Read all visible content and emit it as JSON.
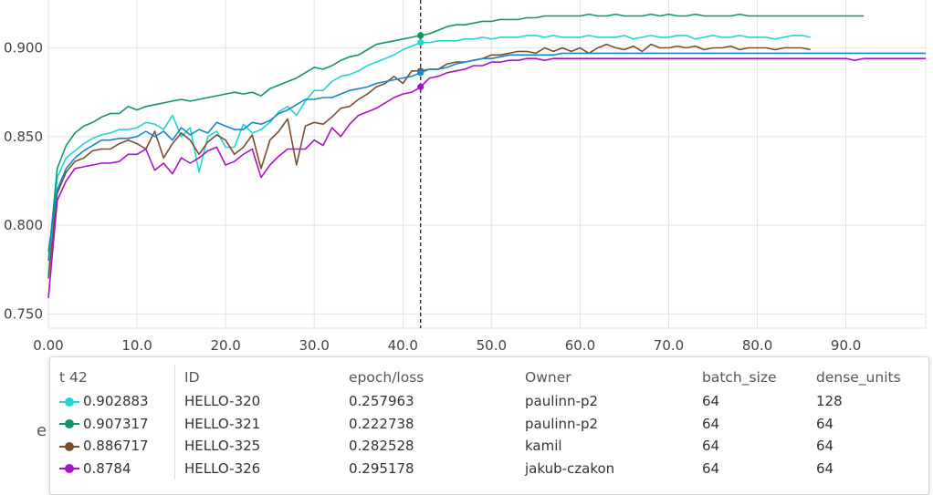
{
  "chart_data": {
    "type": "line",
    "xlim": [
      0,
      99
    ],
    "ylim": [
      0.742,
      0.927
    ],
    "x_ticks": [
      0,
      10,
      20,
      30,
      40,
      50,
      60,
      70,
      80,
      90
    ],
    "x_tick_labels": [
      "0.00",
      "10.0",
      "20.0",
      "30.0",
      "40.0",
      "50.0",
      "60.0",
      "70.0",
      "80.0",
      "90.0"
    ],
    "y_ticks": [
      0.75,
      0.8,
      0.85,
      0.9
    ],
    "y_tick_labels": [
      "0.750",
      "0.800",
      "0.850",
      "0.900"
    ],
    "grid": true,
    "cursor_x": 42,
    "series": [
      {
        "name": "HELLO-320",
        "color": "#20d5d2",
        "x": [
          0,
          1,
          2,
          3,
          4,
          5,
          6,
          7,
          8,
          9,
          10,
          11,
          12,
          13,
          14,
          15,
          16,
          17,
          18,
          19,
          20,
          21,
          22,
          23,
          24,
          25,
          26,
          27,
          28,
          29,
          30,
          31,
          32,
          33,
          34,
          35,
          36,
          37,
          38,
          39,
          40,
          41,
          42,
          43,
          44,
          45,
          46,
          47,
          48,
          49,
          50,
          51,
          52,
          53,
          54,
          55,
          56,
          57,
          58,
          59,
          60,
          61,
          62,
          63,
          64,
          65,
          66,
          67,
          68,
          69,
          70,
          71,
          72,
          73,
          74,
          75,
          76,
          77,
          78,
          79,
          80,
          81,
          82,
          83,
          84,
          85,
          86
        ],
        "values": [
          0.772,
          0.827,
          0.838,
          0.842,
          0.846,
          0.849,
          0.851,
          0.852,
          0.854,
          0.854,
          0.855,
          0.858,
          0.857,
          0.854,
          0.862,
          0.85,
          0.855,
          0.83,
          0.85,
          0.853,
          0.844,
          0.844,
          0.857,
          0.852,
          0.854,
          0.858,
          0.864,
          0.867,
          0.862,
          0.87,
          0.876,
          0.876,
          0.881,
          0.884,
          0.885,
          0.887,
          0.89,
          0.892,
          0.894,
          0.896,
          0.899,
          0.901,
          0.903,
          0.903,
          0.904,
          0.904,
          0.904,
          0.905,
          0.905,
          0.906,
          0.905,
          0.906,
          0.906,
          0.906,
          0.907,
          0.907,
          0.906,
          0.907,
          0.906,
          0.906,
          0.906,
          0.907,
          0.906,
          0.906,
          0.906,
          0.907,
          0.905,
          0.906,
          0.907,
          0.906,
          0.906,
          0.907,
          0.907,
          0.905,
          0.906,
          0.907,
          0.906,
          0.906,
          0.907,
          0.906,
          0.906,
          0.906,
          0.905,
          0.906,
          0.907,
          0.907,
          0.906
        ]
      },
      {
        "name": "HELLO-321",
        "color": "#11946a",
        "x": [
          0,
          1,
          2,
          3,
          4,
          5,
          6,
          7,
          8,
          9,
          10,
          11,
          12,
          13,
          14,
          15,
          16,
          17,
          18,
          19,
          20,
          21,
          22,
          23,
          24,
          25,
          26,
          27,
          28,
          29,
          30,
          31,
          32,
          33,
          34,
          35,
          36,
          37,
          38,
          39,
          40,
          41,
          42,
          43,
          44,
          45,
          46,
          47,
          48,
          49,
          50,
          51,
          52,
          53,
          54,
          55,
          56,
          57,
          58,
          59,
          60,
          61,
          62,
          63,
          64,
          65,
          66,
          67,
          68,
          69,
          70,
          71,
          72,
          73,
          74,
          75,
          76,
          77,
          78,
          79,
          80,
          81,
          82,
          83,
          84,
          85,
          86,
          87,
          88,
          89,
          90,
          91,
          92
        ],
        "values": [
          0.78,
          0.832,
          0.845,
          0.852,
          0.856,
          0.858,
          0.861,
          0.863,
          0.863,
          0.867,
          0.865,
          0.867,
          0.868,
          0.869,
          0.87,
          0.871,
          0.87,
          0.871,
          0.872,
          0.873,
          0.874,
          0.875,
          0.874,
          0.875,
          0.873,
          0.877,
          0.879,
          0.881,
          0.883,
          0.886,
          0.889,
          0.888,
          0.89,
          0.893,
          0.895,
          0.896,
          0.899,
          0.902,
          0.903,
          0.904,
          0.905,
          0.906,
          0.907,
          0.908,
          0.91,
          0.912,
          0.913,
          0.913,
          0.914,
          0.915,
          0.915,
          0.916,
          0.916,
          0.916,
          0.917,
          0.917,
          0.918,
          0.918,
          0.918,
          0.918,
          0.918,
          0.919,
          0.918,
          0.918,
          0.919,
          0.918,
          0.918,
          0.918,
          0.919,
          0.918,
          0.919,
          0.918,
          0.918,
          0.919,
          0.918,
          0.918,
          0.918,
          0.918,
          0.919,
          0.918,
          0.918,
          0.918,
          0.918,
          0.918,
          0.918,
          0.918,
          0.918,
          0.918,
          0.918,
          0.918,
          0.918,
          0.918,
          0.918
        ]
      },
      {
        "name": "HELLO-325",
        "color": "#7b4e30",
        "x": [
          0,
          1,
          2,
          3,
          4,
          5,
          6,
          7,
          8,
          9,
          10,
          11,
          12,
          13,
          14,
          15,
          16,
          17,
          18,
          19,
          20,
          21,
          22,
          23,
          24,
          25,
          26,
          27,
          28,
          29,
          30,
          31,
          32,
          33,
          34,
          35,
          36,
          37,
          38,
          39,
          40,
          41,
          42,
          43,
          44,
          45,
          46,
          47,
          48,
          49,
          50,
          51,
          52,
          53,
          54,
          55,
          56,
          57,
          58,
          59,
          60,
          61,
          62,
          63,
          64,
          65,
          66,
          67,
          68,
          69,
          70,
          71,
          72,
          73,
          74,
          75,
          76,
          77,
          78,
          79,
          80,
          81,
          82,
          83,
          84,
          85,
          86
        ],
        "values": [
          0.77,
          0.818,
          0.83,
          0.836,
          0.838,
          0.842,
          0.843,
          0.843,
          0.846,
          0.848,
          0.846,
          0.843,
          0.853,
          0.838,
          0.846,
          0.852,
          0.848,
          0.84,
          0.847,
          0.851,
          0.848,
          0.84,
          0.844,
          0.851,
          0.832,
          0.848,
          0.853,
          0.86,
          0.834,
          0.856,
          0.858,
          0.857,
          0.861,
          0.866,
          0.867,
          0.871,
          0.874,
          0.878,
          0.88,
          0.884,
          0.88,
          0.887,
          0.887,
          0.888,
          0.888,
          0.891,
          0.892,
          0.892,
          0.893,
          0.894,
          0.896,
          0.896,
          0.897,
          0.898,
          0.898,
          0.897,
          0.9,
          0.898,
          0.9,
          0.898,
          0.9,
          0.897,
          0.9,
          0.902,
          0.9,
          0.899,
          0.901,
          0.898,
          0.902,
          0.9,
          0.9,
          0.901,
          0.9,
          0.901,
          0.899,
          0.9,
          0.9,
          0.901,
          0.899,
          0.9,
          0.9,
          0.9,
          0.899,
          0.9,
          0.9,
          0.9,
          0.899
        ]
      },
      {
        "name": "HELLO-326",
        "color": "#a614c6",
        "x": [
          0,
          1,
          2,
          3,
          4,
          5,
          6,
          7,
          8,
          9,
          10,
          11,
          12,
          13,
          14,
          15,
          16,
          17,
          18,
          19,
          20,
          21,
          22,
          23,
          24,
          25,
          26,
          27,
          28,
          29,
          30,
          31,
          32,
          33,
          34,
          35,
          36,
          37,
          38,
          39,
          40,
          41,
          42,
          43,
          44,
          45,
          46,
          47,
          48,
          49,
          50,
          51,
          52,
          53,
          54,
          55,
          56,
          57,
          58,
          59,
          60,
          61,
          62,
          63,
          64,
          65,
          66,
          67,
          68,
          69,
          70,
          71,
          72,
          73,
          74,
          75,
          76,
          77,
          78,
          79,
          80,
          81,
          82,
          83,
          84,
          85,
          86,
          87,
          88,
          89,
          90,
          91,
          92,
          93,
          94,
          95,
          96,
          97,
          98,
          99
        ],
        "values": [
          0.759,
          0.814,
          0.825,
          0.832,
          0.833,
          0.834,
          0.835,
          0.835,
          0.836,
          0.84,
          0.84,
          0.843,
          0.831,
          0.835,
          0.829,
          0.838,
          0.835,
          0.838,
          0.842,
          0.844,
          0.834,
          0.836,
          0.84,
          0.843,
          0.827,
          0.834,
          0.839,
          0.843,
          0.843,
          0.843,
          0.848,
          0.845,
          0.855,
          0.85,
          0.857,
          0.862,
          0.864,
          0.866,
          0.869,
          0.872,
          0.874,
          0.875,
          0.878,
          0.883,
          0.884,
          0.886,
          0.887,
          0.888,
          0.89,
          0.89,
          0.892,
          0.892,
          0.893,
          0.893,
          0.894,
          0.894,
          0.893,
          0.894,
          0.894,
          0.894,
          0.894,
          0.894,
          0.894,
          0.894,
          0.894,
          0.894,
          0.894,
          0.894,
          0.894,
          0.894,
          0.894,
          0.894,
          0.894,
          0.894,
          0.894,
          0.894,
          0.894,
          0.894,
          0.894,
          0.894,
          0.894,
          0.894,
          0.894,
          0.894,
          0.894,
          0.894,
          0.894,
          0.894,
          0.894,
          0.894,
          0.894,
          0.893,
          0.894,
          0.894,
          0.894,
          0.894,
          0.894,
          0.894,
          0.894,
          0.894
        ]
      },
      {
        "name": "",
        "color": "#1787c8",
        "x": [
          0,
          1,
          2,
          3,
          4,
          5,
          6,
          7,
          8,
          9,
          10,
          11,
          12,
          13,
          14,
          15,
          16,
          17,
          18,
          19,
          20,
          21,
          22,
          23,
          24,
          25,
          26,
          27,
          28,
          29,
          30,
          31,
          32,
          33,
          34,
          35,
          36,
          37,
          38,
          39,
          40,
          41,
          42,
          43,
          44,
          45,
          46,
          47,
          48,
          49,
          50,
          51,
          52,
          53,
          54,
          55,
          56,
          57,
          58,
          59,
          60,
          61,
          62,
          63,
          64,
          65,
          66,
          67,
          68,
          69,
          70,
          71,
          72,
          73,
          74,
          75,
          76,
          77,
          78,
          79,
          80,
          81,
          82,
          83,
          84,
          85,
          86,
          87,
          88,
          89,
          90,
          91,
          92,
          93,
          94,
          95,
          96,
          97,
          98,
          99
        ],
        "values": [
          0.785,
          0.82,
          0.832,
          0.838,
          0.842,
          0.845,
          0.848,
          0.848,
          0.849,
          0.849,
          0.85,
          0.853,
          0.85,
          0.853,
          0.848,
          0.855,
          0.851,
          0.854,
          0.852,
          0.858,
          0.856,
          0.854,
          0.854,
          0.858,
          0.857,
          0.859,
          0.863,
          0.865,
          0.868,
          0.871,
          0.871,
          0.872,
          0.872,
          0.874,
          0.876,
          0.877,
          0.878,
          0.88,
          0.881,
          0.882,
          0.883,
          0.884,
          0.886,
          0.888,
          0.888,
          0.889,
          0.891,
          0.892,
          0.893,
          0.894,
          0.894,
          0.895,
          0.896,
          0.896,
          0.896,
          0.896,
          0.896,
          0.896,
          0.897,
          0.897,
          0.897,
          0.897,
          0.897,
          0.897,
          0.897,
          0.897,
          0.897,
          0.897,
          0.897,
          0.897,
          0.897,
          0.897,
          0.897,
          0.897,
          0.897,
          0.897,
          0.897,
          0.897,
          0.897,
          0.897,
          0.897,
          0.897,
          0.897,
          0.897,
          0.897,
          0.897,
          0.897,
          0.897,
          0.897,
          0.897,
          0.897,
          0.897,
          0.897,
          0.897,
          0.897,
          0.897,
          0.897,
          0.897,
          0.897,
          0.897
        ]
      }
    ]
  },
  "tooltip": {
    "headers": [
      "t 42",
      "ID",
      "epoch/loss",
      "Owner",
      "batch_size",
      "dense_units"
    ],
    "rows": [
      {
        "color": "#20d5d2",
        "value": "0.902883",
        "id": "HELLO-320",
        "loss": "0.257963",
        "owner": "paulinn-p2",
        "batch_size": "64",
        "dense_units": "128"
      },
      {
        "color": "#11946a",
        "value": "0.907317",
        "id": "HELLO-321",
        "loss": "0.222738",
        "owner": "paulinn-p2",
        "batch_size": "64",
        "dense_units": "64"
      },
      {
        "color": "#7b4e30",
        "value": "0.886717",
        "id": "HELLO-325",
        "loss": "0.282528",
        "owner": "kamil",
        "batch_size": "64",
        "dense_units": "64"
      },
      {
        "color": "#a614c6",
        "value": "0.8784",
        "id": "HELLO-326",
        "loss": "0.295178",
        "owner": "jakub-czakon",
        "batch_size": "64",
        "dense_units": "64"
      }
    ]
  },
  "hidden_label": "e"
}
